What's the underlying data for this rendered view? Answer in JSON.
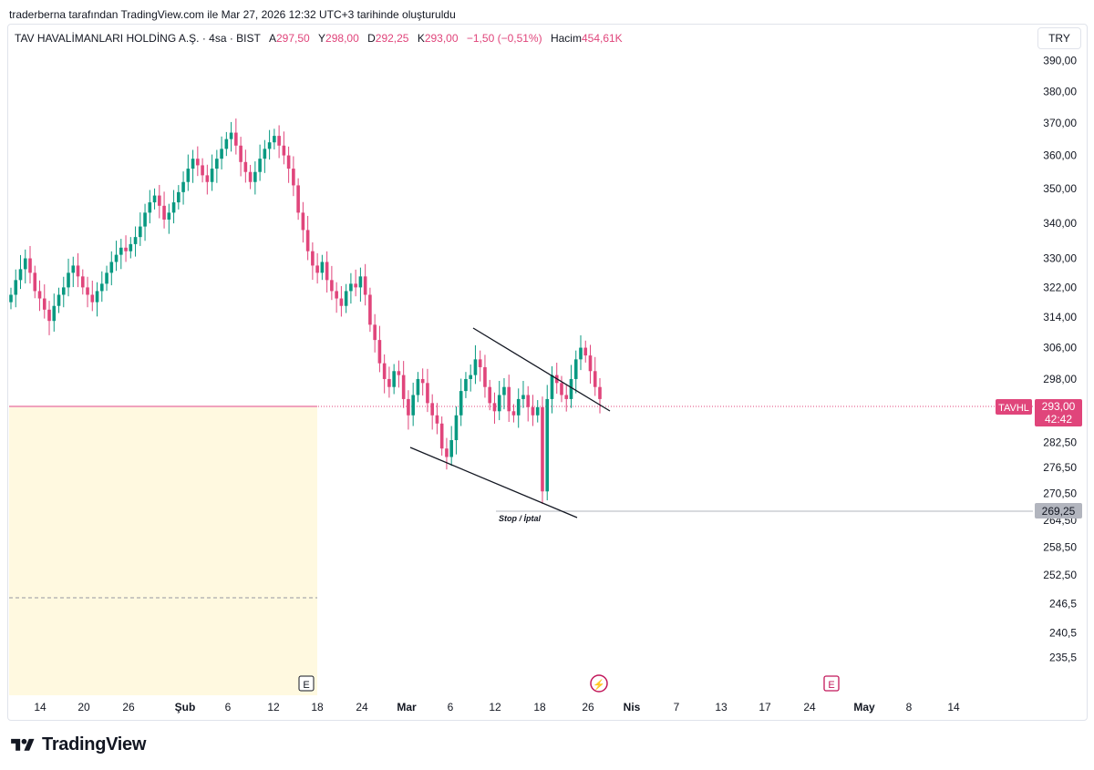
{
  "header": {
    "credit": "traderberna tarafından TradingView.com ile Mar 27, 2026 12:32 UTC+3 tarihinde oluşturuldu"
  },
  "legend": {
    "symbol_name": "TAV HAVALİMANLARI HOLDİNG A.Ş. · 4sa · BIST",
    "open_label": "A",
    "open_value": "297,50",
    "high_label": "Y",
    "high_value": "298,00",
    "low_label": "D",
    "low_value": "292,25",
    "close_label": "K",
    "close_value": "293,00",
    "change": "−1,50 (−0,51%)",
    "volume_label": "Hacim",
    "volume_value": "454,61K"
  },
  "currency_button": "TRY",
  "brand": {
    "name": "TradingView"
  },
  "colors": {
    "up": "#089981",
    "down": "#e0457b",
    "zone": "#fff9e0",
    "price_line": "#e0457b",
    "stop_line": "#b2b5be"
  },
  "chart_data": {
    "type": "candlestick",
    "symbol": "TAVHL",
    "timeframe": "4sa",
    "scale": "log",
    "ylim": [
      232,
      392
    ],
    "y_ticks": [
      "390,00",
      "380,00",
      "370,00",
      "360,00",
      "350,00",
      "340,00",
      "330,00",
      "322,00",
      "314,00",
      "306,00",
      "298,00",
      "282,50",
      "276,50",
      "270,50",
      "264,50",
      "258,50",
      "252,50",
      "246,5",
      "240,5",
      "235,5"
    ],
    "x_ticks": [
      {
        "label": "14",
        "bold": false
      },
      {
        "label": "20",
        "bold": false
      },
      {
        "label": "26",
        "bold": false
      },
      {
        "label": "Şub",
        "bold": true
      },
      {
        "label": "6",
        "bold": false
      },
      {
        "label": "12",
        "bold": false
      },
      {
        "label": "18",
        "bold": false
      },
      {
        "label": "24",
        "bold": false
      },
      {
        "label": "Mar",
        "bold": true
      },
      {
        "label": "6",
        "bold": false
      },
      {
        "label": "12",
        "bold": false
      },
      {
        "label": "18",
        "bold": false
      },
      {
        "label": "26",
        "bold": false
      },
      {
        "label": "Nis",
        "bold": true
      },
      {
        "label": "7",
        "bold": false
      },
      {
        "label": "13",
        "bold": false
      },
      {
        "label": "17",
        "bold": false
      },
      {
        "label": "24",
        "bold": false
      },
      {
        "label": "May",
        "bold": true
      },
      {
        "label": "8",
        "bold": false
      },
      {
        "label": "14",
        "bold": false
      }
    ],
    "closes": [
      320,
      324,
      327,
      330,
      326,
      321,
      319,
      316,
      313,
      317,
      320,
      322,
      326,
      328,
      325,
      322,
      320,
      318,
      321,
      323,
      326,
      329,
      331,
      333,
      332,
      334,
      336,
      339,
      343,
      346,
      348,
      345,
      341,
      343,
      346,
      349,
      352,
      356,
      359,
      357,
      354,
      352,
      356,
      359,
      362,
      365,
      367,
      363,
      358,
      355,
      352,
      355,
      359,
      362,
      364,
      366,
      363,
      360,
      356,
      351,
      343,
      338,
      332,
      328,
      326,
      329,
      324,
      321,
      319,
      317,
      321,
      323,
      322,
      325,
      320,
      312,
      308,
      302,
      298,
      296,
      300,
      299,
      293,
      289,
      294,
      298,
      297,
      292,
      289,
      287,
      281,
      279,
      283,
      289,
      295,
      298,
      299,
      303,
      301,
      296,
      292,
      290,
      294,
      296,
      290,
      289,
      293,
      294,
      291,
      289,
      291,
      271,
      293,
      299,
      297,
      294,
      293,
      298,
      303,
      306,
      304,
      300,
      296,
      293
    ],
    "current_price": {
      "label": "TAVHL",
      "value": "293,00",
      "countdown": "42:42"
    },
    "stop_level": {
      "value": "269,25",
      "label": "Stop / İptal"
    },
    "annotations": [
      "Stop / İptal"
    ],
    "events": [
      "E",
      "⚡",
      "E"
    ]
  }
}
